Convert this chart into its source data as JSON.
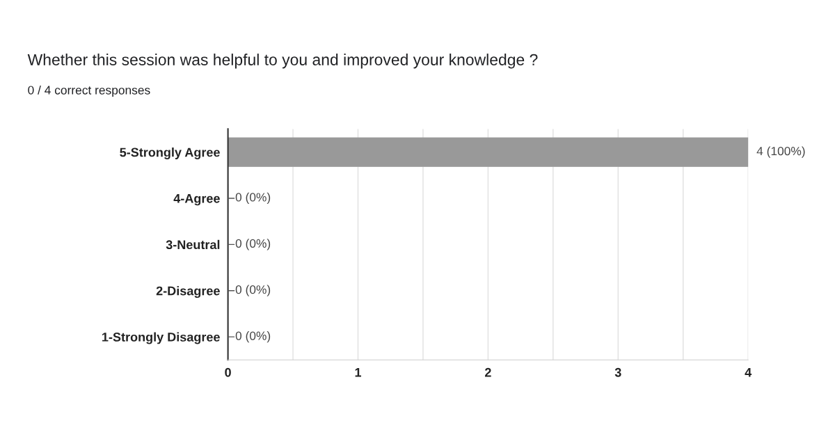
{
  "chart_data": {
    "type": "bar",
    "orientation": "horizontal",
    "title": "Whether this session was helpful to you and improved your knowledge ?",
    "subtitle": "0 / 4 correct responses",
    "categories": [
      "5-Strongly Agree",
      "4-Agree",
      "3-Neutral",
      "2-Disagree",
      "1-Strongly Disagree"
    ],
    "values": [
      4,
      0,
      0,
      0,
      0
    ],
    "color": "#999999",
    "value_labels": [
      "4 (100%)",
      "0 (0%)",
      "0 (0%)",
      "0 (0%)",
      "0 (0%)"
    ],
    "xlim": [
      0,
      4
    ],
    "xticks": [
      0,
      {
        "value": 0.5,
        "label": null
      },
      1,
      {
        "value": 1.5,
        "label": null
      },
      2,
      {
        "value": 2.5,
        "label": null
      },
      3,
      {
        "value": 3.5,
        "label": null
      },
      4
    ],
    "grid": "x",
    "legend": false
  }
}
